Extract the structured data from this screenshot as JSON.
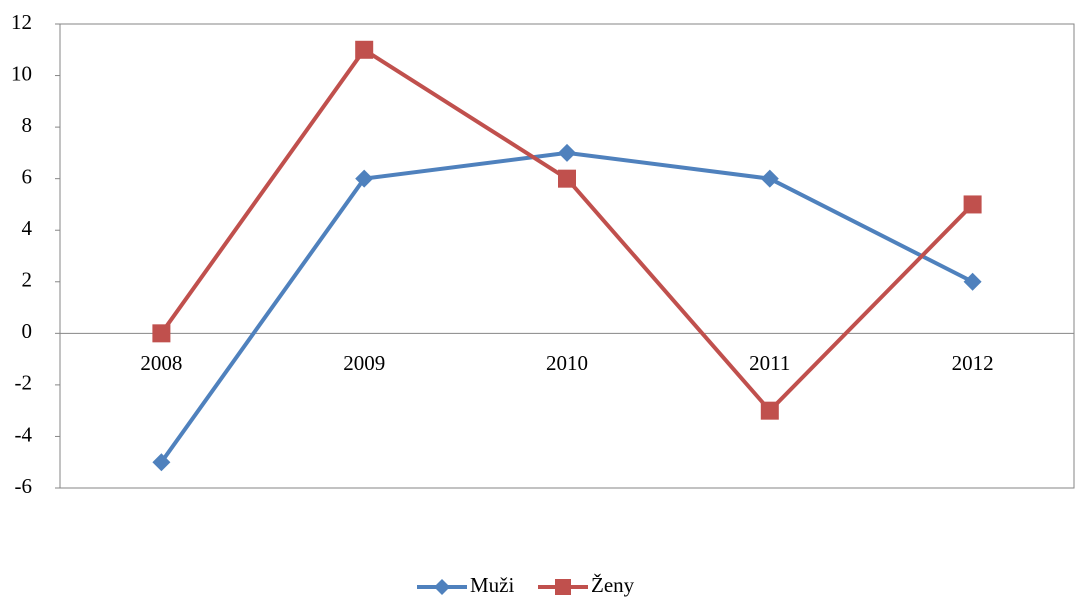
{
  "chart_data": {
    "type": "line",
    "categories": [
      "2008",
      "2009",
      "2010",
      "2011",
      "2012"
    ],
    "series": [
      {
        "name": "Muži",
        "color": "#4f81bd",
        "marker": "diamond",
        "values": [
          -5,
          6,
          7,
          6,
          2
        ]
      },
      {
        "name": "Ženy",
        "color": "#c0504d",
        "marker": "square",
        "values": [
          0,
          11,
          6,
          -3,
          5
        ]
      }
    ],
    "ylim": [
      -6,
      12
    ],
    "yticks": [
      -6,
      -4,
      -2,
      0,
      2,
      4,
      6,
      8,
      10,
      12
    ],
    "grid": false,
    "legend": "bottom"
  }
}
